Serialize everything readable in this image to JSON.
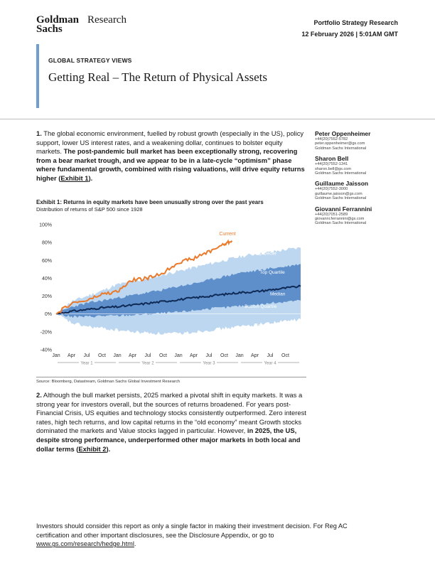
{
  "header": {
    "logo_line1": "Goldman",
    "logo_line2": "Sachs",
    "logo_research": "Research",
    "report_type": "Portfolio Strategy Research",
    "date": "12 February 2026 | 5:01AM GMT"
  },
  "title_block": {
    "kicker": "GLOBAL STRATEGY VIEWS",
    "title": "Getting Real – The Return of Physical Assets"
  },
  "para1": {
    "num": "1.",
    "plain": " The global economic environment, fuelled by robust growth (especially in the US), policy support, lower US interest rates, and a weakening dollar, continues to bolster equity markets. ",
    "bold": "The post-pandemic bull market has been exceptionally strong, recovering from a bear market trough, and we appear to be in a late-cycle “optimism” phase where fundamental growth, combined with rising valuations, will drive equity returns higher (",
    "link": "Exhibit 1",
    "bold_end": ")."
  },
  "authors": [
    {
      "name": "Peter Oppenheimer",
      "phone": "+44(20)7552-5782",
      "email": "peter.oppenheimer@gs.com",
      "firm": "Goldman Sachs International"
    },
    {
      "name": "Sharon Bell",
      "phone": "+44(20)7552-1341",
      "email": "sharon.bell@gs.com",
      "firm": "Goldman Sachs International"
    },
    {
      "name": "Guillaume Jaisson",
      "phone": "+44(20)7552-3000",
      "email": "guillaume.jaisson@gs.com",
      "firm": "Goldman Sachs International"
    },
    {
      "name": "Giovanni Ferrannini",
      "phone": "+44(20)7051-2589",
      "email": "giovanni.ferrannini@gs.com",
      "firm": "Goldman Sachs International"
    }
  ],
  "exhibit": {
    "title": "Exhibit 1: Returns in equity markets have been unusually strong over the past years",
    "subtitle": "Distribution of returns of S&P 500 since 1928",
    "source": "Source: Bloomberg, Datastream, Goldman Sachs Global Investment Research"
  },
  "chart_data": {
    "type": "area",
    "title": "Distribution of returns of S&P 500 since 1928",
    "xlabel": "",
    "ylabel": "",
    "ylim": [
      -40,
      100
    ],
    "y_ticks": [
      -40,
      -20,
      0,
      20,
      40,
      60,
      80,
      100
    ],
    "y_tick_labels": [
      "-40%",
      "-20%",
      "0%",
      "20%",
      "40%",
      "60%",
      "80%",
      "100%"
    ],
    "x_tick_labels": [
      "Jan",
      "Apr",
      "Jul",
      "Oct",
      "Jan",
      "Apr",
      "Jul",
      "Oct",
      "Jan",
      "Apr",
      "Jul",
      "Oct",
      "Jan",
      "Apr",
      "Jul",
      "Oct"
    ],
    "x_tick_months": [
      0,
      3,
      6,
      9,
      12,
      15,
      18,
      21,
      24,
      27,
      30,
      33,
      36,
      39,
      42,
      45
    ],
    "year_labels": [
      "Year 1",
      "Year 2",
      "Year 3",
      "Year 4"
    ],
    "x_months": [
      0,
      3,
      6,
      9,
      12,
      15,
      18,
      21,
      24,
      27,
      30,
      33,
      36,
      39,
      42,
      45,
      48
    ],
    "series": [
      {
        "name": "Top Decile",
        "values": [
          0,
          14,
          20,
          26,
          33,
          36,
          40,
          44,
          48,
          52,
          56,
          60,
          64,
          67,
          69,
          72,
          74
        ]
      },
      {
        "name": "Top Quartile",
        "values": [
          0,
          8,
          12,
          15,
          18,
          21,
          24,
          27,
          31,
          34,
          38,
          42,
          46,
          48,
          51,
          53,
          56
        ]
      },
      {
        "name": "Median",
        "values": [
          0,
          3,
          5,
          7,
          8,
          10,
          12,
          14,
          16,
          18,
          20,
          22,
          24,
          25,
          27,
          29,
          31
        ]
      },
      {
        "name": "Bottom Quartile",
        "values": [
          0,
          -3,
          -3,
          -2,
          -2,
          -1,
          0,
          1,
          2,
          4,
          6,
          7,
          9,
          10,
          12,
          14,
          15
        ]
      },
      {
        "name": "Bottom Decile",
        "values": [
          0,
          -10,
          -14,
          -16,
          -18,
          -20,
          -21,
          -22,
          -22,
          -20,
          -18,
          -16,
          -14,
          -12,
          -10,
          -8,
          -6
        ]
      },
      {
        "name": "Current",
        "x": [
          0,
          3,
          6,
          9,
          12,
          15,
          18,
          21,
          24,
          27,
          30,
          33,
          34.5
        ],
        "values": [
          0,
          12,
          15,
          22,
          25,
          38,
          40,
          46,
          58,
          62,
          70,
          78,
          82
        ]
      }
    ],
    "annotations": [
      "Current",
      "Top Decile",
      "Top Quartile",
      "Median",
      "Bottom Quartile",
      "Bottom Decile"
    ],
    "colors": {
      "decile_band": "#bcd7ef",
      "quartile_band": "#5e8fcb",
      "median": "#0e2a55",
      "current": "#ea7a2c",
      "band_label": "#ffffff"
    }
  },
  "para2": {
    "num": "2.",
    "plain": " Although the bull market persists, 2025 marked a pivotal shift in equity markets. It was a strong year for investors overall, but the sources of returns broadened. For years post-Financial Crisis, US equities and technology stocks consistently outperformed. Zero interest rates, high tech returns, and low capital returns in the “old economy” meant Growth stocks dominated the markets and Value stocks lagged in particular. However, ",
    "bold": "in 2025, the US, despite strong performance, underperformed other major markets in both local and dollar terms (",
    "link": "Exhibit 2",
    "bold_end": ")."
  },
  "footer": {
    "text": "Investors should consider this report as only a single factor in making their investment decision. For Reg AC certification and other important disclosures, see the Disclosure Appendix, or go to ",
    "link": "www.gs.com/research/hedge.html",
    "end": "."
  },
  "brand": {
    "accent": "#6e9fd0"
  }
}
